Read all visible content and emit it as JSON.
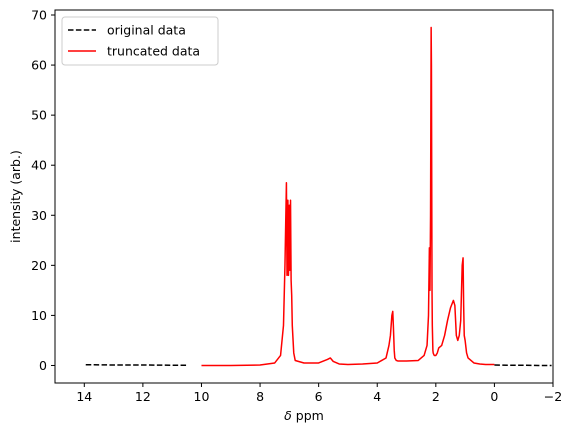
{
  "chart_data": {
    "type": "line",
    "title": "",
    "xlabel": "δ ppm",
    "xlabel_parts": {
      "italic": "δ",
      "rest": " ppm"
    },
    "ylabel": "intensity (arb.)",
    "xlim": [
      15,
      -2
    ],
    "ylim": [
      -3.5,
      71
    ],
    "x_inverted": true,
    "grid": false,
    "legend_position": "top-left",
    "x_ticks": [
      14,
      12,
      10,
      8,
      6,
      4,
      2,
      0,
      -2
    ],
    "x_tick_labels": [
      "14",
      "12",
      "10",
      "8",
      "6",
      "4",
      "2",
      "0",
      "−2"
    ],
    "y_ticks": [
      0,
      10,
      20,
      30,
      40,
      50,
      60,
      70
    ],
    "y_tick_labels": [
      "0",
      "10",
      "20",
      "30",
      "40",
      "50",
      "60",
      "70"
    ],
    "series": [
      {
        "name": "original data",
        "color": "#000000",
        "style": "dashed",
        "x": [
          13.95,
          13.0,
          12.0,
          11.0,
          10.5
        ],
        "y": [
          0.15,
          0.1,
          0.1,
          0.05,
          0.05
        ]
      },
      {
        "name": "original data",
        "color": "#000000",
        "style": "dashed",
        "x": [
          0.0,
          -0.5,
          -1.0,
          -1.5,
          -1.95
        ],
        "y": [
          0.1,
          0.05,
          0.05,
          0.0,
          0.0
        ]
      },
      {
        "name": "truncated data",
        "color": "#ff0000",
        "style": "solid",
        "x": [
          10.0,
          9.0,
          8.0,
          7.5,
          7.3,
          7.2,
          7.15,
          7.1,
          7.08,
          7.05,
          7.03,
          7.0,
          6.98,
          6.96,
          6.94,
          6.92,
          6.9,
          6.85,
          6.8,
          6.5,
          6.0,
          5.7,
          5.6,
          5.5,
          5.3,
          5.0,
          4.5,
          4.0,
          3.7,
          3.6,
          3.55,
          3.5,
          3.47,
          3.45,
          3.42,
          3.4,
          3.35,
          3.3,
          3.0,
          2.6,
          2.4,
          2.3,
          2.25,
          2.22,
          2.2,
          2.18,
          2.16,
          2.15,
          2.13,
          2.12,
          2.1,
          2.09,
          2.07,
          2.05,
          2.0,
          1.95,
          1.9,
          1.8,
          1.7,
          1.6,
          1.5,
          1.4,
          1.35,
          1.3,
          1.25,
          1.2,
          1.15,
          1.1,
          1.07,
          1.05,
          1.03,
          1.0,
          0.95,
          0.9,
          0.7,
          0.5,
          0.3,
          0.0
        ],
        "y": [
          0.0,
          0.0,
          0.1,
          0.5,
          2.0,
          8.0,
          20.0,
          36.5,
          18.0,
          33.0,
          18.0,
          32.0,
          19.0,
          33.0,
          17.0,
          14.0,
          8.0,
          2.5,
          1.0,
          0.5,
          0.5,
          1.2,
          1.5,
          0.8,
          0.3,
          0.2,
          0.3,
          0.5,
          1.5,
          4.0,
          6.0,
          10.0,
          10.8,
          8.0,
          3.0,
          1.5,
          1.0,
          0.9,
          0.9,
          1.0,
          2.0,
          4.0,
          10.0,
          23.5,
          15.0,
          30.0,
          67.5,
          60.0,
          15.0,
          8.0,
          3.0,
          2.5,
          2.2,
          2.0,
          2.0,
          2.5,
          3.5,
          4.0,
          6.0,
          9.0,
          11.5,
          13.0,
          12.0,
          6.0,
          5.0,
          6.0,
          9.0,
          20.0,
          21.5,
          12.0,
          6.0,
          5.0,
          2.5,
          1.5,
          0.5,
          0.3,
          0.2,
          0.2
        ]
      }
    ],
    "legend": [
      {
        "label": "original data",
        "color": "#000000",
        "style": "dashed"
      },
      {
        "label": "truncated data",
        "color": "#ff0000",
        "style": "solid"
      }
    ]
  }
}
